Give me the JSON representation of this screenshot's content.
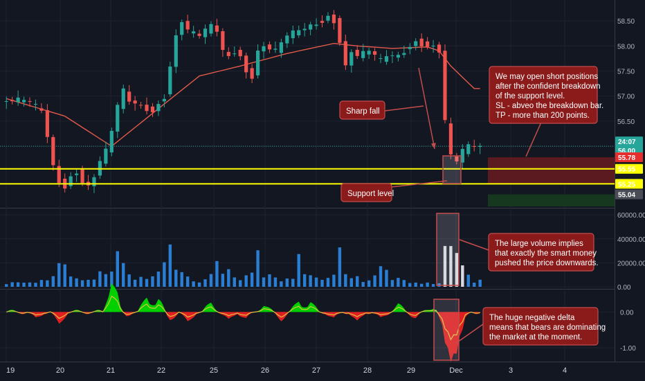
{
  "colors": {
    "background": "#131722",
    "grid": "#1f2331",
    "up": "#26a69a",
    "down": "#ef5350",
    "ma": "#e45a4a",
    "volume": "#2a7fd4",
    "volume_highlight": "#d6d9e0",
    "support": "#ffff00",
    "note_bg": "#8b1a1a",
    "note_border": "#c44c4c",
    "zone_red": "#5a1a1f",
    "zone_green": "#16381f",
    "tag_last": "#26a69a",
    "tag_red": "#e62e2e",
    "tag_yellow": "#ffff00",
    "tag_gray": "#4a4d57",
    "delta_pos": "#00d000",
    "delta_neg": "#e02020",
    "delta_line": "#e0c040"
  },
  "chart_data": [
    {
      "type": "candlestick",
      "name": "price",
      "x": [
        "19",
        "20",
        "21",
        "22",
        "25",
        "26",
        "27",
        "28",
        "29",
        "Dec",
        "3",
        "4"
      ],
      "ylim": [
        54.8,
        58.75
      ],
      "yticks": [
        "58.50",
        "58.00",
        "57.50",
        "57.00",
        "56.50",
        "56.00"
      ],
      "grid": true,
      "close_path": [
        [
          0,
          56.9
        ],
        [
          2,
          56.92
        ],
        [
          4,
          56.88
        ],
        [
          6,
          56.7
        ],
        [
          7,
          56.2
        ],
        [
          8,
          55.6
        ],
        [
          9,
          55.3
        ],
        [
          10,
          55.2
        ],
        [
          11,
          55.4
        ],
        [
          12,
          55.5
        ],
        [
          13,
          55.3
        ],
        [
          14,
          55.2
        ],
        [
          15,
          55.4
        ],
        [
          16,
          55.7
        ],
        [
          17,
          55.9
        ],
        [
          18,
          56.3
        ],
        [
          19,
          56.8
        ],
        [
          20,
          57.1
        ],
        [
          21,
          56.9
        ],
        [
          23,
          56.8
        ],
        [
          25,
          56.7
        ],
        [
          27,
          57.0
        ],
        [
          28,
          57.6
        ],
        [
          29,
          58.2
        ],
        [
          30,
          58.5
        ],
        [
          31,
          58.3
        ],
        [
          33,
          58.2
        ],
        [
          35,
          58.4
        ],
        [
          36,
          58.3
        ],
        [
          37,
          57.9
        ],
        [
          38,
          57.8
        ],
        [
          39,
          57.9
        ],
        [
          40,
          57.8
        ],
        [
          41,
          57.5
        ],
        [
          42,
          57.4
        ],
        [
          43,
          57.9
        ],
        [
          44,
          58.0
        ],
        [
          46,
          57.9
        ],
        [
          48,
          58.2
        ],
        [
          50,
          58.3
        ],
        [
          52,
          58.4
        ],
        [
          54,
          58.5
        ],
        [
          55,
          58.6
        ],
        [
          56,
          58.5
        ],
        [
          57,
          58.1
        ],
        [
          58,
          57.6
        ],
        [
          59,
          57.9
        ],
        [
          60,
          57.8
        ],
        [
          62,
          57.9
        ],
        [
          64,
          57.7
        ],
        [
          65,
          57.8
        ],
        [
          67,
          57.8
        ],
        [
          69,
          58.0
        ],
        [
          70,
          58.1
        ],
        [
          72,
          58.0
        ],
        [
          73,
          58.0
        ],
        [
          74,
          57.9
        ],
        [
          75,
          56.5
        ],
        [
          76,
          55.8
        ],
        [
          77,
          55.7
        ],
        [
          78,
          55.9
        ],
        [
          79,
          56.0
        ],
        [
          80,
          56.0
        ],
        [
          81,
          55.98
        ]
      ],
      "moving_average": [
        [
          0,
          56.95
        ],
        [
          10,
          56.6
        ],
        [
          18,
          56.0
        ],
        [
          26,
          56.75
        ],
        [
          33,
          57.4
        ],
        [
          40,
          57.6
        ],
        [
          48,
          57.85
        ],
        [
          56,
          58.05
        ],
        [
          60,
          58.0
        ],
        [
          66,
          57.95
        ],
        [
          72,
          57.98
        ],
        [
          74,
          57.9
        ],
        [
          76,
          57.6
        ],
        [
          80,
          57.15
        ]
      ],
      "last_price": "56.00",
      "countdown": "24:07",
      "price_tags": [
        "55.78",
        "55.55",
        "55.25",
        "55.04"
      ],
      "support_levels": [
        55.55,
        55.25
      ],
      "target_zone": {
        "red_top": 55.78,
        "red_bottom": 55.25,
        "green_top": 55.04,
        "green_bottom": 54.8
      },
      "annotations": [
        "Sharp fall",
        "Support level",
        "We may open short positions after the confident breakdown of the support level. SL - abveo the breakdown bar. TP - more than 200 points."
      ]
    },
    {
      "type": "bar",
      "name": "volume",
      "ylim": [
        0,
        63000
      ],
      "yticks": [
        "60000.00",
        "40000.00",
        "20000.00",
        "0.00"
      ],
      "envelope": [
        [
          0,
          4000
        ],
        [
          6,
          6000
        ],
        [
          8,
          12000
        ],
        [
          10,
          30000
        ],
        [
          11,
          15000
        ],
        [
          13,
          6000
        ],
        [
          15,
          10000
        ],
        [
          18,
          20000
        ],
        [
          19,
          40000
        ],
        [
          21,
          12000
        ],
        [
          24,
          8000
        ],
        [
          26,
          18000
        ],
        [
          27,
          36000
        ],
        [
          28,
          38000
        ],
        [
          29,
          24000
        ],
        [
          31,
          9000
        ],
        [
          33,
          6000
        ],
        [
          35,
          12000
        ],
        [
          36,
          30000
        ],
        [
          37,
          18000
        ],
        [
          40,
          9000
        ],
        [
          42,
          16000
        ],
        [
          43,
          36000
        ],
        [
          44,
          14000
        ],
        [
          47,
          7000
        ],
        [
          49,
          12000
        ],
        [
          50,
          30000
        ],
        [
          51,
          18000
        ],
        [
          53,
          8000
        ],
        [
          56,
          14000
        ],
        [
          57,
          38000
        ],
        [
          58,
          15000
        ],
        [
          61,
          6000
        ],
        [
          63,
          12000
        ],
        [
          64,
          24000
        ],
        [
          66,
          10000
        ],
        [
          69,
          5000
        ],
        [
          72,
          4000
        ],
        [
          74,
          4000
        ],
        [
          75,
          35000
        ],
        [
          76,
          60000
        ],
        [
          77,
          44000
        ],
        [
          78,
          24000
        ],
        [
          79,
          12000
        ],
        [
          80,
          5000
        ],
        [
          81,
          10000
        ]
      ],
      "annotation": "The large volume implies that exactly the smart money pushed the price downwards."
    },
    {
      "type": "area",
      "name": "delta",
      "ylim": [
        -1.35,
        0.55
      ],
      "yticks": [
        "0.00",
        "-1.00"
      ],
      "spikes": [
        [
          5,
          -0.2
        ],
        [
          9,
          -0.35
        ],
        [
          18,
          0.75
        ],
        [
          19,
          0.3
        ],
        [
          20,
          -0.15
        ],
        [
          24,
          0.4
        ],
        [
          26,
          0.35
        ],
        [
          28,
          -0.2
        ],
        [
          31,
          -0.3
        ],
        [
          35,
          0.25
        ],
        [
          38,
          -0.25
        ],
        [
          41,
          -0.2
        ],
        [
          44,
          0.2
        ],
        [
          47,
          -0.2
        ],
        [
          50,
          0.3
        ],
        [
          52,
          0.25
        ],
        [
          56,
          -0.2
        ],
        [
          60,
          -0.3
        ],
        [
          64,
          -0.2
        ],
        [
          67,
          0.2
        ],
        [
          70,
          -0.15
        ],
        [
          73,
          0.15
        ],
        [
          75,
          -0.6
        ],
        [
          76,
          -0.95
        ],
        [
          77,
          -0.7
        ],
        [
          78,
          -0.3
        ]
      ],
      "annotation": "The huge negative delta means that bears are dominating the market at the moment."
    }
  ]
}
